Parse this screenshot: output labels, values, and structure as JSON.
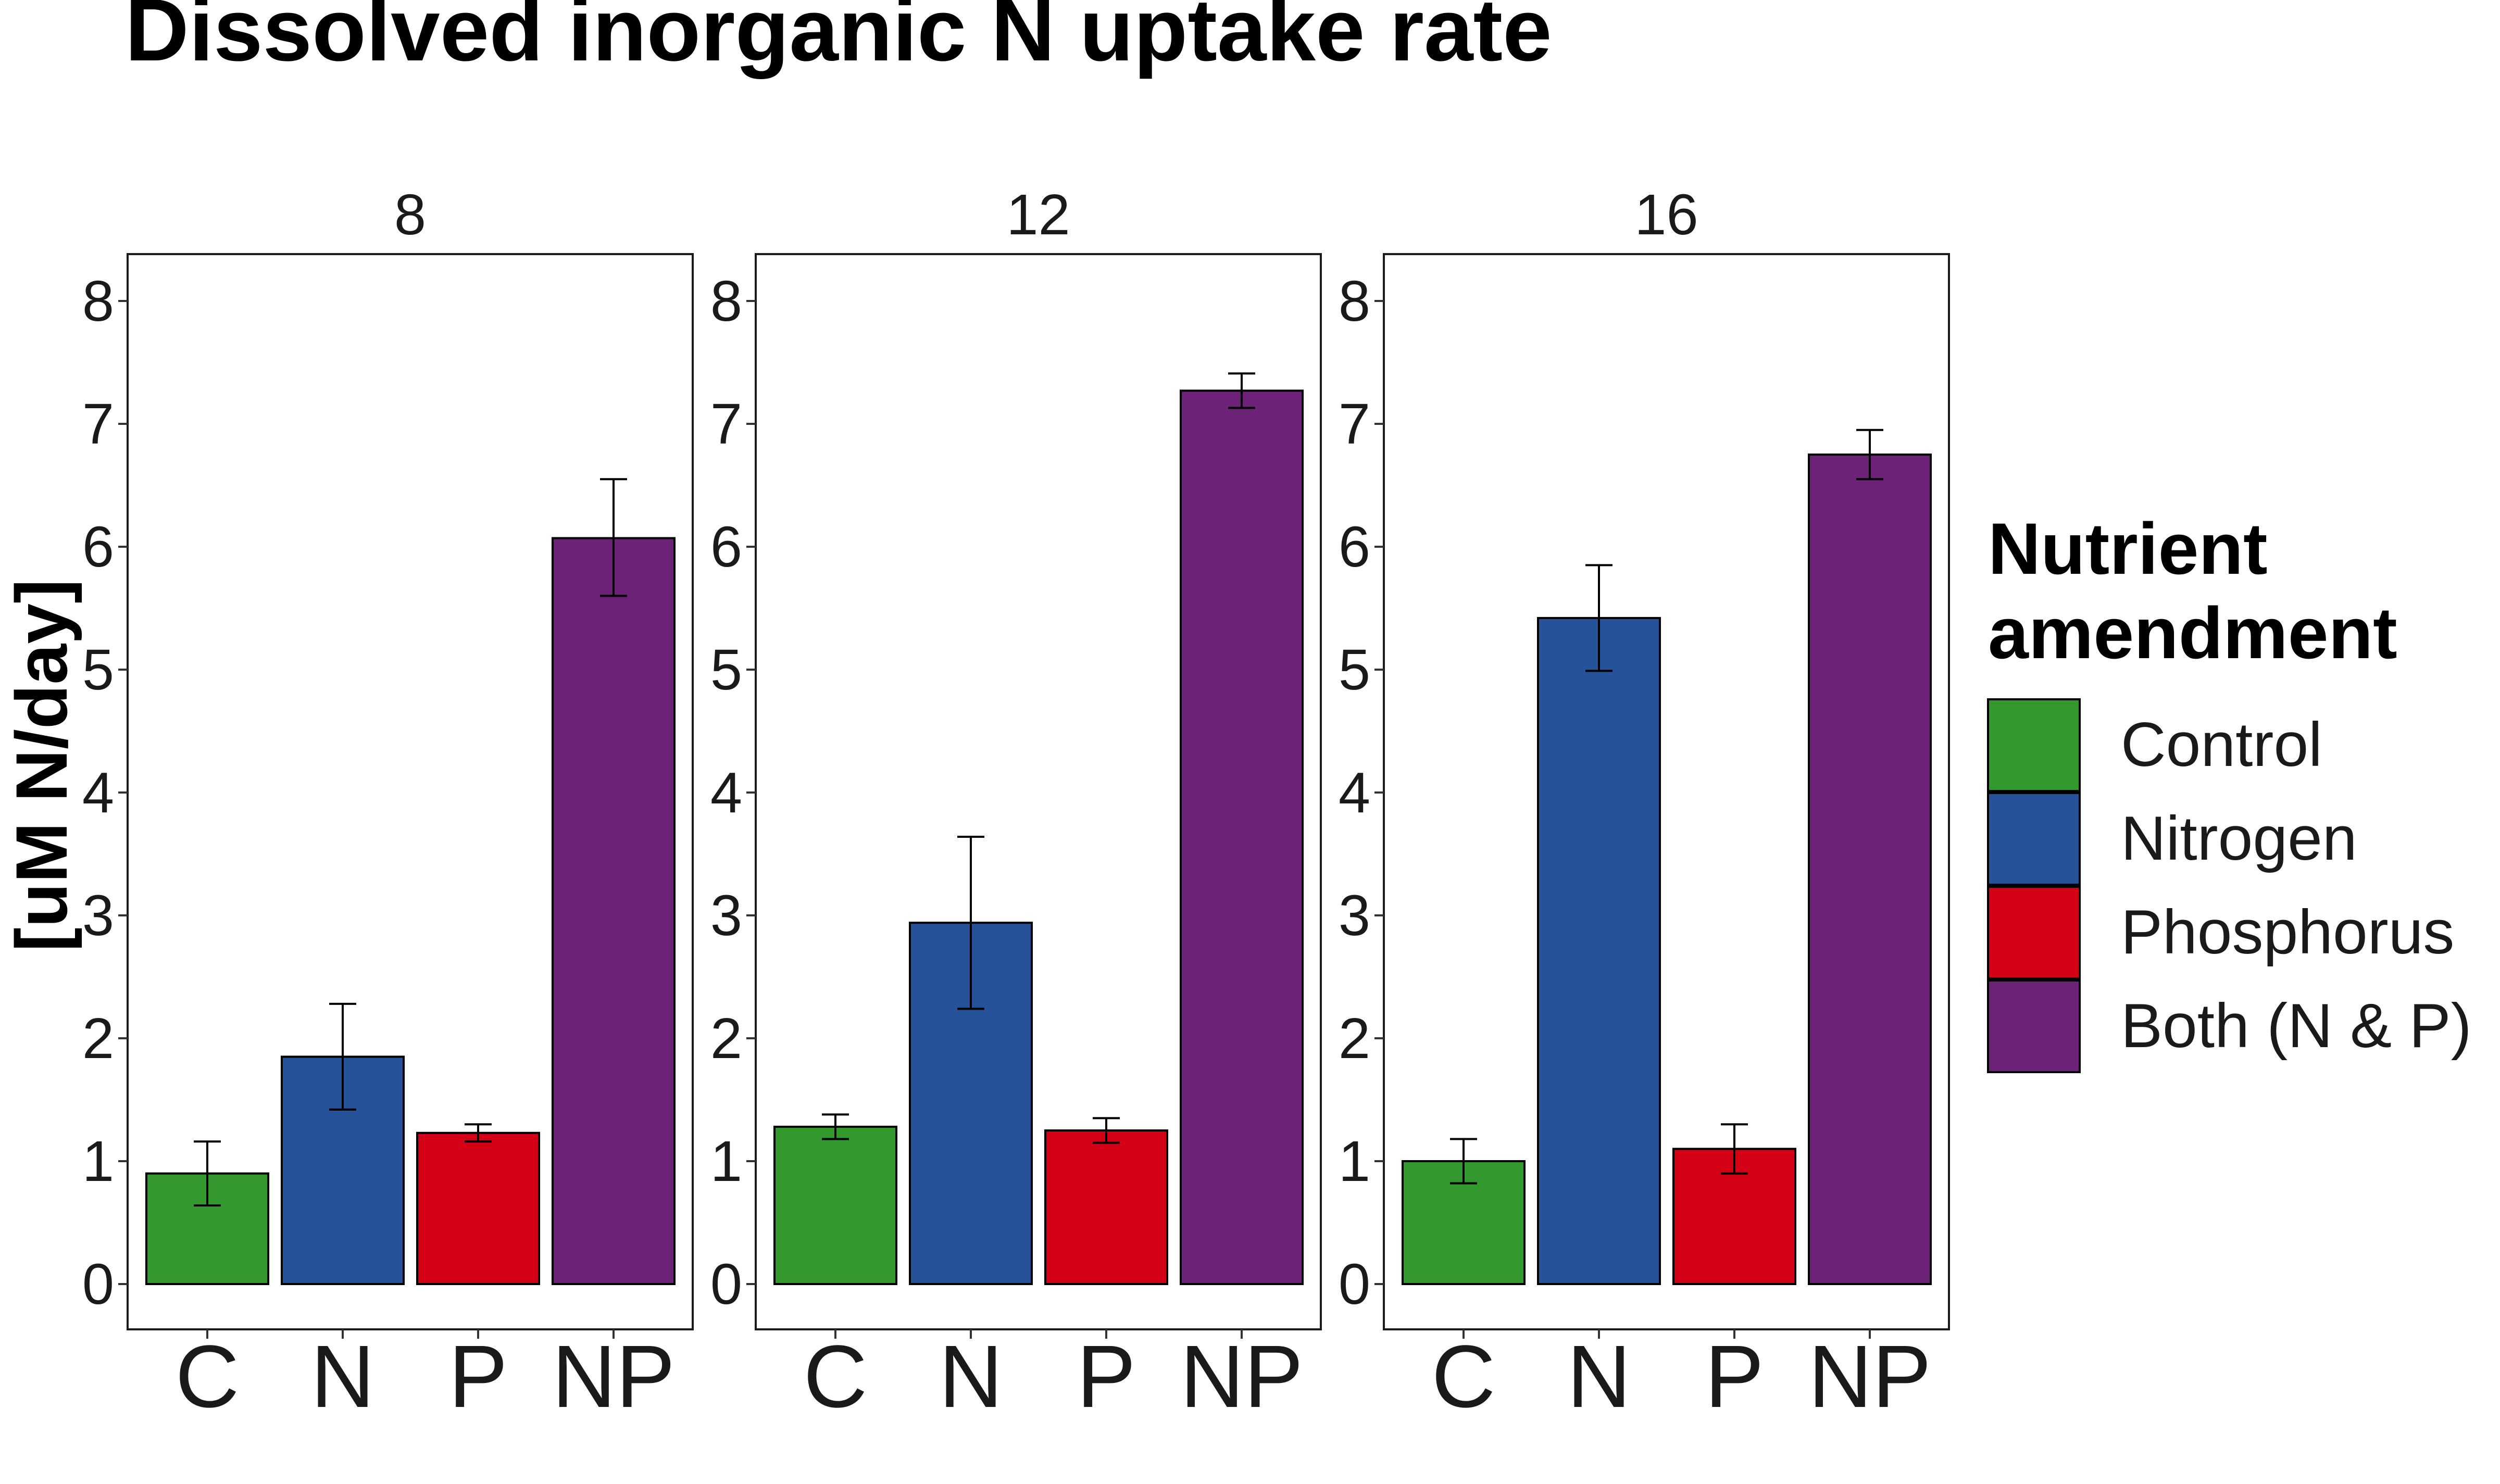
{
  "chart_data": {
    "type": "bar",
    "title": "Dissolved inorganic N uptake rate",
    "ylabel": "[uM N/day]",
    "xlabel": "",
    "ylim": [
      0,
      8.4
    ],
    "yticks": [
      0,
      1,
      2,
      3,
      4,
      5,
      6,
      7,
      8
    ],
    "categories": [
      "C",
      "N",
      "P",
      "NP"
    ],
    "facets": [
      {
        "label": "8",
        "values": [
          0.9,
          1.85,
          1.23,
          6.07
        ],
        "error_low": [
          0.64,
          1.42,
          1.16,
          5.6
        ],
        "error_high": [
          1.16,
          2.28,
          1.3,
          6.55
        ]
      },
      {
        "label": "12",
        "values": [
          1.28,
          2.94,
          1.25,
          7.27
        ],
        "error_low": [
          1.18,
          2.24,
          1.15,
          7.13
        ],
        "error_high": [
          1.38,
          3.64,
          1.35,
          7.41
        ]
      },
      {
        "label": "16",
        "values": [
          1.0,
          5.42,
          1.1,
          6.75
        ],
        "error_low": [
          0.82,
          4.99,
          0.9,
          6.55
        ],
        "error_high": [
          1.18,
          5.85,
          1.3,
          6.95
        ]
      }
    ],
    "legend": {
      "title_line1": "Nutrient",
      "title_line2": "amendment",
      "entries": [
        {
          "label": "Control",
          "color": "#33982E"
        },
        {
          "label": "Nitrogen",
          "color": "#265299"
        },
        {
          "label": "Phosphorus",
          "color": "#D30016"
        },
        {
          "label": "Both (N & P)",
          "color": "#6C2277"
        }
      ]
    },
    "grid": false
  }
}
